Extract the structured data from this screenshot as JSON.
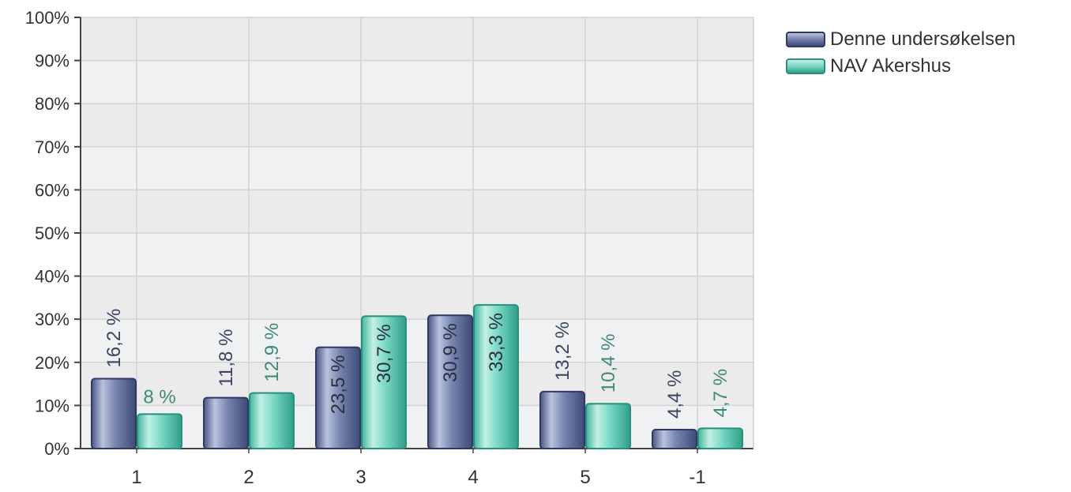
{
  "chart_data": {
    "type": "bar",
    "categories": [
      "1",
      "2",
      "3",
      "4",
      "5",
      "-1"
    ],
    "series": [
      {
        "name": "Denne undersøkelsen",
        "values": [
          16.2,
          11.8,
          23.5,
          30.9,
          13.2,
          4.4
        ],
        "labels": [
          "16,2 %",
          "11,8 %",
          "23,5 %",
          "30,9 %",
          "13,2 %",
          "4,4 %"
        ],
        "color": "#6b7aa6",
        "stroke": "#2e3a63",
        "label_color": "#3a4560"
      },
      {
        "name": "NAV Akershus",
        "values": [
          8,
          12.9,
          30.7,
          33.3,
          10.4,
          4.7
        ],
        "labels": [
          "8 %",
          "12,9 %",
          "30,7 %",
          "33,3 %",
          "10,4 %",
          "4,7 %"
        ],
        "color": "#6fd1bd",
        "stroke": "#2a8f7d",
        "label_color": "#3e8a78"
      }
    ],
    "ylim": [
      0,
      100
    ],
    "yticks": [
      0,
      10,
      20,
      30,
      40,
      50,
      60,
      70,
      80,
      90,
      100
    ],
    "ytick_labels": [
      "0%",
      "10%",
      "20%",
      "30%",
      "40%",
      "50%",
      "60%",
      "70%",
      "80%",
      "90%",
      "100%"
    ],
    "grid": true,
    "legend_position": "top-right",
    "title": "",
    "xlabel": "",
    "ylabel": ""
  }
}
